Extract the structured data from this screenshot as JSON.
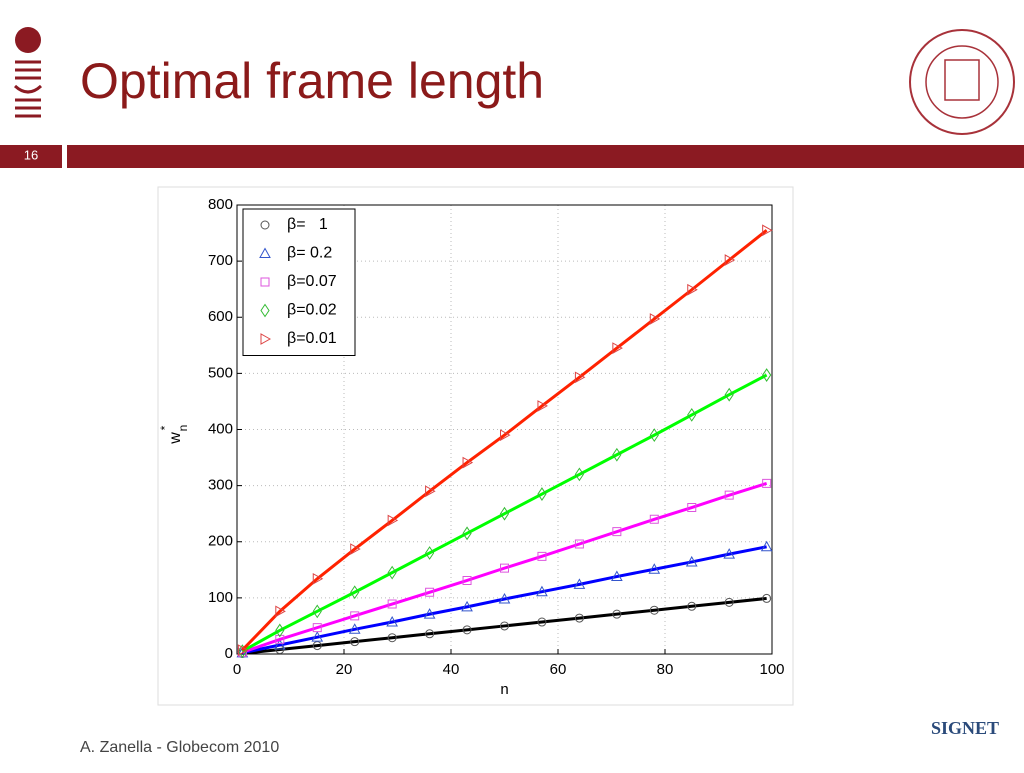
{
  "header": {
    "title": "Optimal frame length",
    "slide_number": "16"
  },
  "footer": {
    "text": "A. Zanella - Globecom 2010",
    "logo_text": "SIGNET"
  },
  "chart_data": {
    "type": "line",
    "x_label": "n",
    "y_label": {
      "base": "w",
      "sup": "*",
      "sub": "n"
    },
    "x": [
      1,
      8,
      15,
      22,
      29,
      36,
      43,
      50,
      57,
      64,
      71,
      78,
      85,
      92,
      99
    ],
    "series": [
      {
        "name": "β=   1",
        "color": "#000000",
        "marker_color": "#555555",
        "marker": "circle",
        "values": [
          1,
          8,
          15,
          22,
          29,
          36,
          43,
          50,
          57,
          64,
          71,
          78,
          85,
          92,
          99
        ]
      },
      {
        "name": "β= 0.2",
        "color": "#0000ff",
        "marker_color": "#3355cc",
        "marker": "triangle-up",
        "values": [
          2,
          16,
          30,
          44,
          57,
          71,
          84,
          98,
          111,
          124,
          138,
          151,
          164,
          178,
          191
        ]
      },
      {
        "name": "β=0.07",
        "color": "#ff00ff",
        "marker_color": "#dd55dd",
        "marker": "square",
        "values": [
          3,
          26,
          47,
          68,
          89,
          110,
          131,
          153,
          174,
          196,
          218,
          240,
          261,
          283,
          304
        ]
      },
      {
        "name": "β=0.02",
        "color": "#00ff00",
        "marker_color": "#33bb33",
        "marker": "diamond",
        "values": [
          5,
          42,
          76,
          110,
          145,
          180,
          215,
          250,
          285,
          320,
          355,
          390,
          426,
          462,
          497
        ]
      },
      {
        "name": "β=0.01",
        "color": "#ff2200",
        "marker_color": "#dd4444",
        "marker": "triangle-right",
        "values": [
          7,
          76,
          134,
          187,
          238,
          290,
          341,
          390,
          442,
          493,
          545,
          597,
          649,
          702,
          755
        ]
      }
    ],
    "xlim": [
      0,
      100
    ],
    "xticks": [
      0,
      20,
      40,
      60,
      80,
      100
    ],
    "ylim": [
      0,
      800
    ],
    "yticks": [
      0,
      100,
      200,
      300,
      400,
      500,
      600,
      700,
      800
    ],
    "grid": true,
    "legend": "top-left"
  }
}
